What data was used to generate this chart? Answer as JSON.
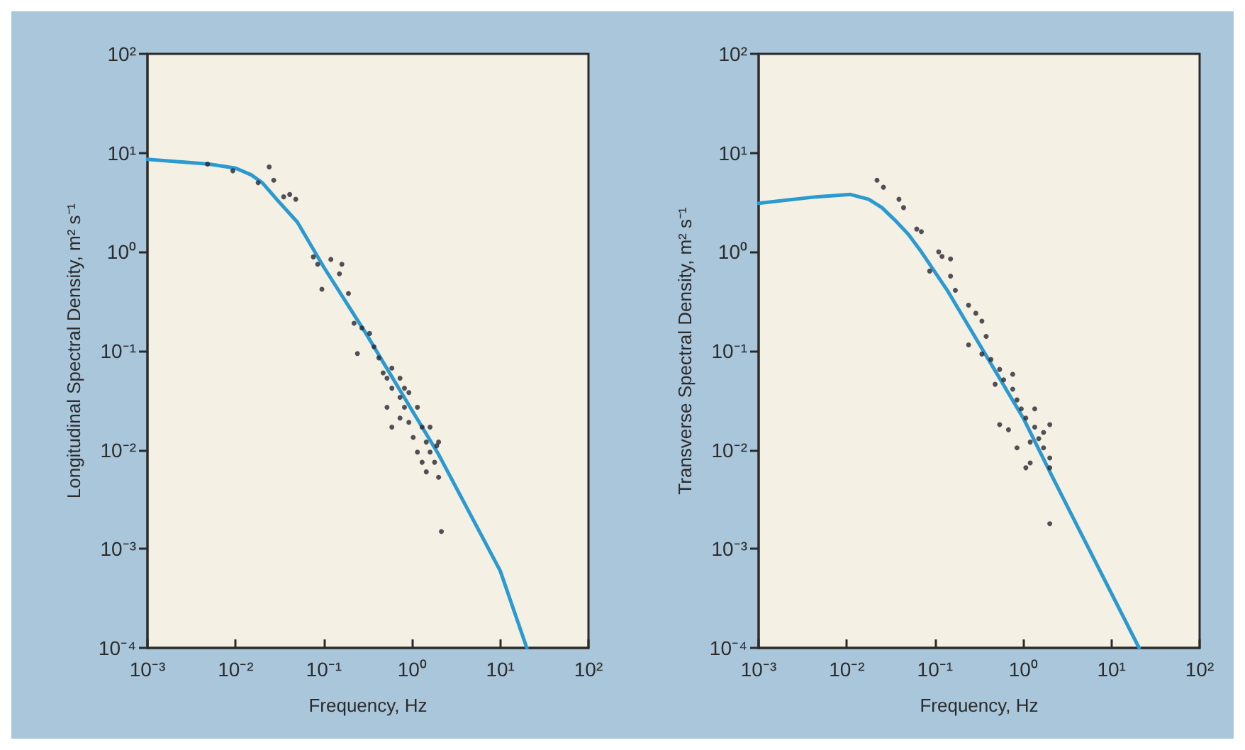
{
  "chart_data": [
    {
      "type": "scatter",
      "ylabel": "Longitudinal Spectral Density, m² s⁻¹",
      "xlabel": "Frequency, Hz",
      "log": "xy",
      "grid": false,
      "xlim": [
        0.001,
        100
      ],
      "ylim": [
        0.0001,
        100
      ],
      "xticks": [
        {
          "value": 0.001,
          "label": "10⁻³"
        },
        {
          "value": 0.01,
          "label": "10⁻²"
        },
        {
          "value": 0.1,
          "label": "10⁻¹"
        },
        {
          "value": 1,
          "label": "10⁰"
        },
        {
          "value": 10,
          "label": "10¹"
        },
        {
          "value": 100,
          "label": "10²"
        }
      ],
      "yticks": [
        {
          "value": 0.0001,
          "label": "10⁻⁴"
        },
        {
          "value": 0.001,
          "label": "10⁻³"
        },
        {
          "value": 0.01,
          "label": "10⁻²"
        },
        {
          "value": 0.1,
          "label": "10⁻¹"
        },
        {
          "value": 1,
          "label": "10⁰"
        },
        {
          "value": 10,
          "label": "10¹"
        },
        {
          "value": 100,
          "label": "10²"
        }
      ],
      "series": [
        {
          "type": "line",
          "color": "#2a9ad0",
          "marker": "none",
          "line_style": "solid",
          "x": [
            0.001,
            0.005,
            0.01,
            0.015,
            0.02,
            0.03,
            0.05,
            0.1,
            0.3,
            1,
            2,
            10,
            20
          ],
          "values": [
            8.6,
            7.7,
            7,
            6,
            5,
            3.3,
            2,
            0.7,
            0.15,
            0.025,
            0.009,
            0.0006,
            0.0001
          ]
        },
        {
          "color": "#2a2630",
          "marker": "circle",
          "x": [
            0.0048,
            0.0093,
            0.018,
            0.024,
            0.027,
            0.035,
            0.041,
            0.048,
            0.076,
            0.085,
            0.12,
            0.15,
            0.16,
            0.095,
            0.19,
            0.22,
            0.27,
            0.33,
            0.24,
            0.37,
            0.42,
            0.52,
            0.59,
            0.73,
            0.82,
            0.59,
            0.92,
            1.03,
            1.3,
            1.45,
            1.6,
            1.8,
            2.0,
            2.0,
            1.45,
            2.15,
            0.73,
            0.92,
            1.15,
            0.52,
            0.47,
            0.59,
            0.73,
            1.15,
            1.6,
            1.3,
            1.9,
            0.82
          ],
          "values": [
            7.7,
            6.6,
            5.0,
            7.2,
            5.3,
            3.6,
            3.8,
            3.4,
            0.89,
            0.75,
            0.84,
            0.6,
            0.75,
            0.42,
            0.38,
            0.19,
            0.17,
            0.15,
            0.094,
            0.11,
            0.085,
            0.053,
            0.042,
            0.034,
            0.027,
            0.017,
            0.019,
            0.0134,
            0.017,
            0.012,
            0.0095,
            0.0075,
            0.0053,
            0.012,
            0.006,
            0.0015,
            0.053,
            0.038,
            0.027,
            0.027,
            0.06,
            0.067,
            0.021,
            0.0095,
            0.017,
            0.0075,
            0.011,
            0.042
          ]
        }
      ]
    },
    {
      "type": "scatter",
      "ylabel": "Transverse Spectral Density, m² s⁻¹",
      "xlabel": "Frequency, Hz",
      "log": "xy",
      "grid": false,
      "xlim": [
        0.001,
        100
      ],
      "ylim": [
        0.0001,
        100
      ],
      "xticks": [
        {
          "value": 0.001,
          "label": "10⁻³"
        },
        {
          "value": 0.01,
          "label": "10⁻²"
        },
        {
          "value": 0.1,
          "label": "10⁻¹"
        },
        {
          "value": 1,
          "label": "10⁰"
        },
        {
          "value": 10,
          "label": "10¹"
        },
        {
          "value": 100,
          "label": "10²"
        }
      ],
      "yticks": [
        {
          "value": 0.0001,
          "label": "10⁻⁴"
        },
        {
          "value": 0.001,
          "label": "10⁻³"
        },
        {
          "value": 0.01,
          "label": "10⁻²"
        },
        {
          "value": 0.1,
          "label": "10⁻¹"
        },
        {
          "value": 1,
          "label": "10⁰"
        },
        {
          "value": 10,
          "label": "10¹"
        },
        {
          "value": 100,
          "label": "10²"
        }
      ],
      "series": [
        {
          "type": "line",
          "color": "#2a9ad0",
          "marker": "none",
          "line_style": "solid",
          "x": [
            0.001,
            0.0045,
            0.011,
            0.0177,
            0.025,
            0.035,
            0.05,
            0.07,
            0.14,
            1,
            2.15,
            20.6
          ],
          "values": [
            3.1,
            3.6,
            3.8,
            3.4,
            2.8,
            2.1,
            1.5,
            1.0,
            0.4,
            0.021,
            0.0053,
            0.0001
          ]
        },
        {
          "color": "#2a2630",
          "marker": "circle",
          "x": [
            0.022,
            0.026,
            0.039,
            0.044,
            0.062,
            0.07,
            0.11,
            0.12,
            0.15,
            0.087,
            0.15,
            0.17,
            0.24,
            0.29,
            0.34,
            0.38,
            0.24,
            0.34,
            0.43,
            0.54,
            0.6,
            0.76,
            0.85,
            0.95,
            1.07,
            1.35,
            1.5,
            1.7,
            2.0,
            2.0,
            1.2,
            0.85,
            0.54,
            0.68,
            1.07,
            2.0,
            0.48,
            0.76,
            1.35,
            1.7,
            1.2,
            2.0
          ],
          "values": [
            5.3,
            4.5,
            3.4,
            2.8,
            1.7,
            1.6,
            1.0,
            0.9,
            0.85,
            0.64,
            0.57,
            0.41,
            0.29,
            0.24,
            0.2,
            0.14,
            0.115,
            0.093,
            0.082,
            0.065,
            0.051,
            0.041,
            0.032,
            0.026,
            0.021,
            0.017,
            0.013,
            0.0105,
            0.0083,
            0.0066,
            0.0074,
            0.0105,
            0.018,
            0.016,
            0.0066,
            0.0018,
            0.046,
            0.058,
            0.026,
            0.015,
            0.012,
            0.018
          ]
        }
      ]
    }
  ]
}
